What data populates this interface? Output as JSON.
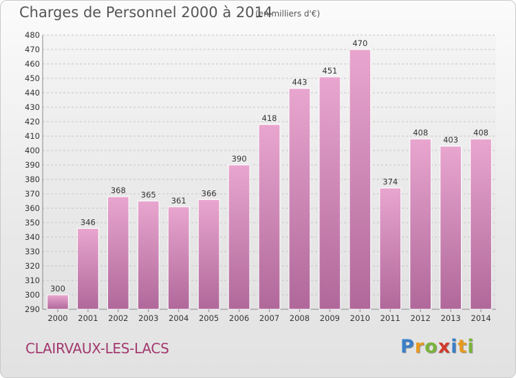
{
  "header": {
    "title": "Charges de Personnel 2000 à 2014",
    "subtitle": "(en milliers d'€)"
  },
  "footer": {
    "place": "CLAIRVAUX-LES-LACS",
    "logo_letters": [
      {
        "ch": "P",
        "color": "#3a7fc8"
      },
      {
        "ch": "r",
        "color": "#e79a1f"
      },
      {
        "ch": "o",
        "color": "#7bb33a"
      },
      {
        "ch": "x",
        "color": "#d23a2a"
      },
      {
        "ch": "i",
        "color": "#3a7fc8"
      },
      {
        "ch": "t",
        "color": "#e79a1f"
      },
      {
        "ch": "i",
        "color": "#7bb33a"
      }
    ]
  },
  "chart_data": {
    "type": "bar",
    "title": "Charges de Personnel 2000 à 2014",
    "subtitle": "(en milliers d'€)",
    "categories": [
      "2000",
      "2001",
      "2002",
      "2003",
      "2004",
      "2005",
      "2006",
      "2007",
      "2008",
      "2009",
      "2010",
      "2011",
      "2012",
      "2013",
      "2014"
    ],
    "values": [
      300,
      346,
      368,
      365,
      361,
      366,
      390,
      418,
      443,
      451,
      470,
      374,
      408,
      403,
      408
    ],
    "ylim": [
      290,
      480
    ],
    "yticks": [
      290,
      300,
      310,
      320,
      330,
      340,
      350,
      360,
      370,
      380,
      390,
      400,
      410,
      420,
      430,
      440,
      450,
      460,
      470,
      480
    ],
    "grid": true,
    "bar_color_top": "#e8a6cf",
    "bar_color_bottom": "#b0689a"
  }
}
